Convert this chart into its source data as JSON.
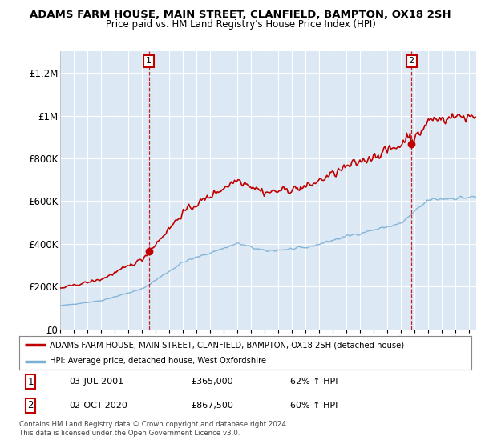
{
  "title": "ADAMS FARM HOUSE, MAIN STREET, CLANFIELD, BAMPTON, OX18 2SH",
  "subtitle": "Price paid vs. HM Land Registry's House Price Index (HPI)",
  "background_color": "#ffffff",
  "plot_bg_color": "#dce9f5",
  "grid_color": "#ffffff",
  "red_line_color": "#c00000",
  "blue_line_color": "#7bafd4",
  "t1": 2001.5,
  "t2": 2020.75,
  "p1": 365000,
  "p2": 867500,
  "xmin_year": 1995.0,
  "xmax_year": 2025.5,
  "ymin": 0,
  "ymax": 1300000,
  "yticks": [
    0,
    200000,
    400000,
    600000,
    800000,
    1000000,
    1200000
  ],
  "ytick_labels": [
    "£0",
    "£200K",
    "£400K",
    "£600K",
    "£800K",
    "£1M",
    "£1.2M"
  ],
  "xtick_years": [
    1995,
    1996,
    1997,
    1998,
    1999,
    2000,
    2001,
    2002,
    2003,
    2004,
    2005,
    2006,
    2007,
    2008,
    2009,
    2010,
    2011,
    2012,
    2013,
    2014,
    2015,
    2016,
    2017,
    2018,
    2019,
    2020,
    2021,
    2022,
    2023,
    2024,
    2025
  ],
  "legend_red_label": "ADAMS FARM HOUSE, MAIN STREET, CLANFIELD, BAMPTON, OX18 2SH (detached house)",
  "legend_blue_label": "HPI: Average price, detached house, West Oxfordshire",
  "annotation1_label": "1",
  "annotation1_date": "03-JUL-2001",
  "annotation1_price": "£365,000",
  "annotation1_hpi": "62% ↑ HPI",
  "annotation2_label": "2",
  "annotation2_date": "02-OCT-2020",
  "annotation2_price": "£867,500",
  "annotation2_hpi": "60% ↑ HPI",
  "footer": "Contains HM Land Registry data © Crown copyright and database right 2024.\nThis data is licensed under the Open Government Licence v3.0."
}
